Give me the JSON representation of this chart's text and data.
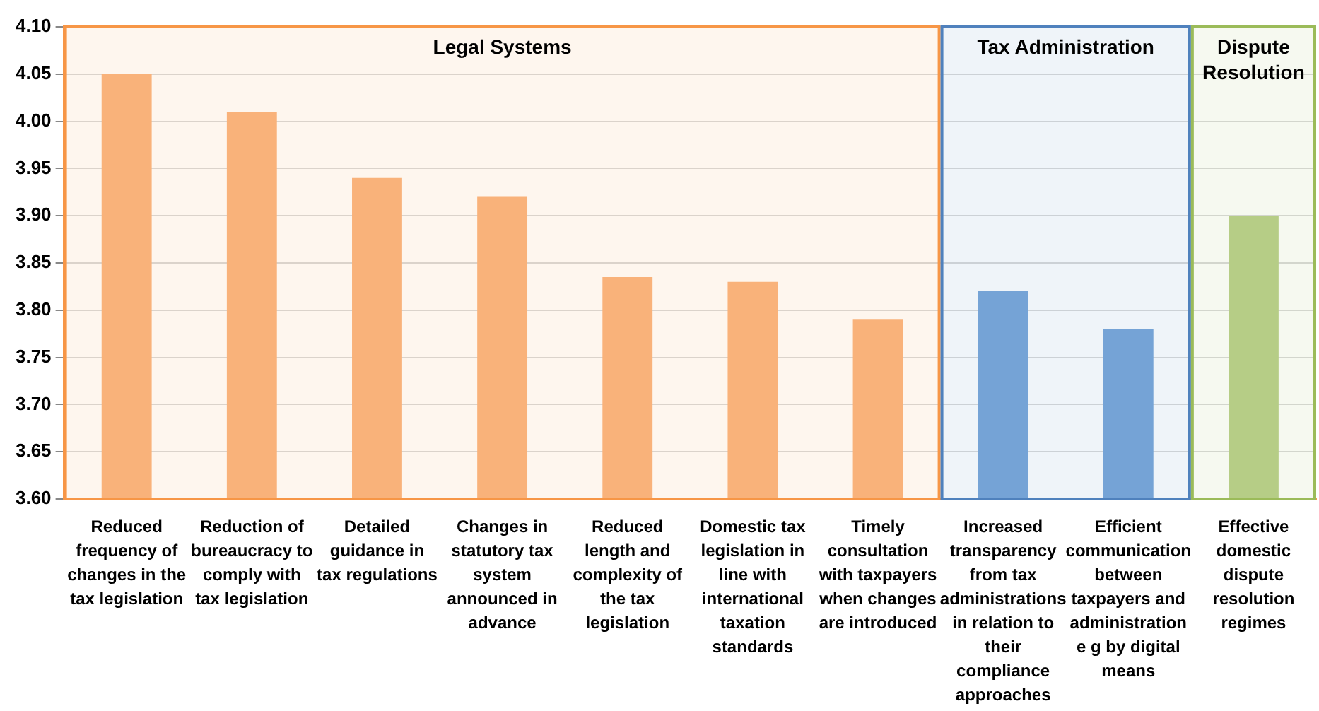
{
  "chart_data": {
    "type": "bar",
    "categories": [
      "Reduced frequency of changes in the tax legislation",
      "Reduction of bureaucracy to comply with tax legislation",
      "Detailed guidance in tax regulations",
      "Changes in statutory tax system announced in advance",
      "Reduced length and complexity of the tax legislation",
      "Domestic tax legislation in line with international taxation standards",
      "Timely consultation with taxpayers when changes are introduced",
      "Increased transparency from tax administrations in relation to their compliance approaches",
      "Efficient communication between taxpayers and administration e g by digital means",
      "Effective domestic dispute resolution regimes"
    ],
    "values": [
      4.05,
      4.01,
      3.94,
      3.92,
      3.835,
      3.83,
      3.79,
      3.82,
      3.78,
      3.9
    ],
    "colors": [
      "#f9b27a",
      "#f9b27a",
      "#f9b27a",
      "#f9b27a",
      "#f9b27a",
      "#f9b27a",
      "#f9b27a",
      "#75a3d6",
      "#75a3d6",
      "#b6cd86"
    ],
    "ylim": [
      3.6,
      4.1
    ],
    "yticks": [
      {
        "value": 3.6,
        "label": "3.60"
      },
      {
        "value": 3.65,
        "label": "3.65"
      },
      {
        "value": 3.7,
        "label": "3.70"
      },
      {
        "value": 3.75,
        "label": "3.75"
      },
      {
        "value": 3.8,
        "label": "3.80"
      },
      {
        "value": 3.85,
        "label": "3.85"
      },
      {
        "value": 3.9,
        "label": "3.90"
      },
      {
        "value": 3.95,
        "label": "3.95"
      },
      {
        "value": 4.0,
        "label": "4.00"
      },
      {
        "value": 4.05,
        "label": "4.05"
      },
      {
        "value": 4.1,
        "label": "4.10"
      }
    ],
    "grid": "y",
    "legend": false,
    "bands": [
      {
        "axis": "x",
        "from": "Reduced frequency of changes in the tax legislation",
        "to": "Timely consultation with taxpayers when changes are introduced",
        "label": "Legal Systems",
        "color": "#f79646"
      },
      {
        "axis": "x",
        "from": "Increased transparency from tax administrations in relation to their compliance approaches",
        "to": "Efficient communication between taxpayers and administration e g by digital means",
        "label": "Tax Administration",
        "color": "#4f81bd"
      },
      {
        "axis": "x",
        "from": "Effective domestic dispute resolution regimes",
        "to": "Effective domestic dispute resolution regimes",
        "label": "Dispute Resolution",
        "color": "#9bbb59"
      }
    ]
  }
}
